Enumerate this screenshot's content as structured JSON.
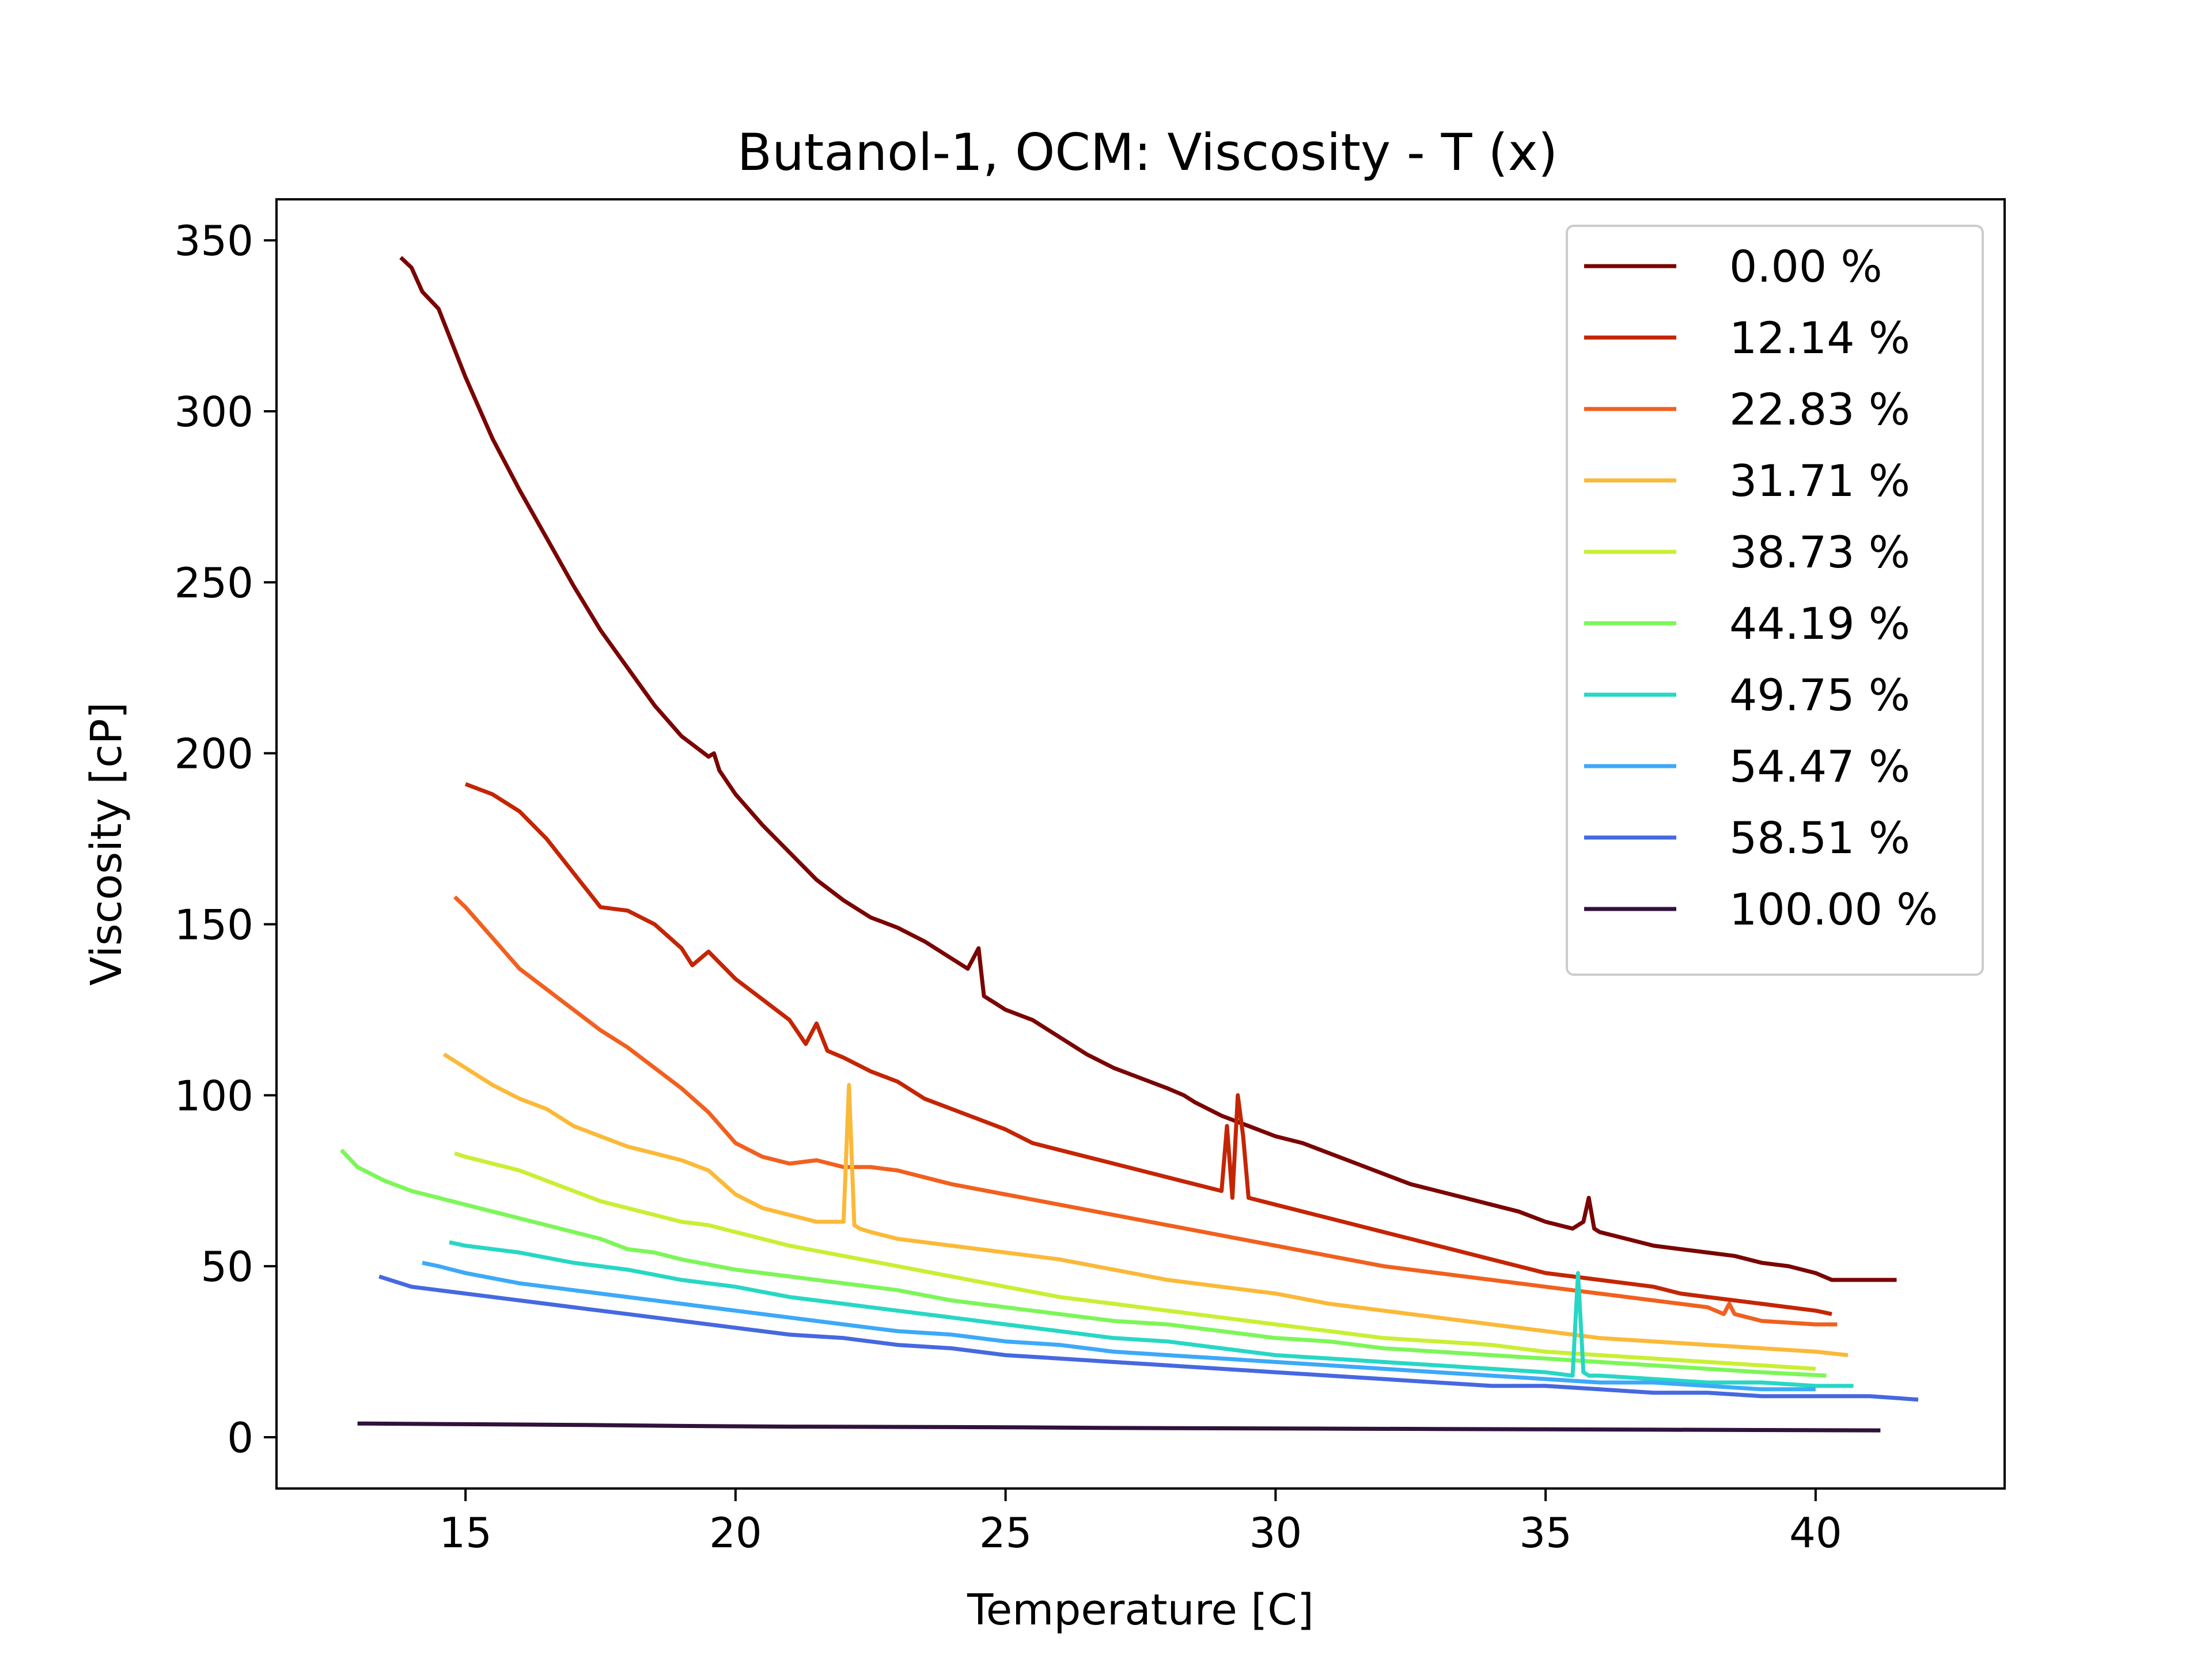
{
  "chart_data": {
    "type": "line",
    "title": "Butanol-1, OCM: Viscosity - T (x)",
    "xlabel": "Temperature [C]",
    "ylabel": "Viscosity [cP]",
    "xlim": [
      11.5,
      43.5
    ],
    "ylim": [
      -15,
      362
    ],
    "xticks": [
      15,
      20,
      25,
      30,
      35,
      40
    ],
    "yticks": [
      0,
      50,
      100,
      150,
      200,
      250,
      300,
      350
    ],
    "grid": false,
    "legend_position": "top-right",
    "series": [
      {
        "name": "0.00 %",
        "color": "#7a0403",
        "x": [
          13.8,
          14.0,
          14.2,
          14.5,
          15.0,
          15.5,
          16.0,
          16.5,
          17.0,
          17.5,
          18.0,
          18.5,
          19.0,
          19.5,
          19.6,
          19.7,
          20.0,
          20.5,
          21.0,
          21.5,
          22.0,
          22.5,
          23.0,
          23.5,
          24.0,
          24.3,
          24.5,
          24.6,
          24.8,
          25.0,
          25.5,
          26.0,
          26.5,
          27.0,
          27.5,
          28.0,
          28.3,
          28.5,
          29.0,
          29.5,
          30.0,
          30.5,
          31.0,
          31.5,
          32.0,
          32.5,
          33.0,
          33.5,
          34.0,
          34.5,
          35.0,
          35.5,
          35.7,
          35.8,
          35.9,
          36.0,
          36.5,
          37.0,
          37.5,
          38.0,
          38.5,
          39.0,
          39.5,
          40.0,
          40.3,
          40.5,
          41.0,
          41.5
        ],
        "y": [
          345,
          342,
          335,
          330,
          310,
          292,
          277,
          263,
          249,
          236,
          225,
          214,
          205,
          199,
          200,
          195,
          188,
          179,
          171,
          163,
          157,
          152,
          149,
          145,
          140,
          137,
          143,
          129,
          127,
          125,
          122,
          117,
          112,
          108,
          105,
          102,
          100,
          98,
          94,
          91,
          88,
          86,
          83,
          80,
          77,
          74,
          72,
          70,
          68,
          66,
          63,
          61,
          63,
          70,
          61,
          60,
          58,
          56,
          55,
          54,
          53,
          51,
          50,
          48,
          46,
          46,
          46,
          46
        ]
      },
      {
        "name": "12.14 %",
        "color": "#c42503",
        "x": [
          15.0,
          15.5,
          16.0,
          16.5,
          17.0,
          17.5,
          18.0,
          18.5,
          19.0,
          19.2,
          19.5,
          20.0,
          20.5,
          21.0,
          21.3,
          21.5,
          21.7,
          22.0,
          22.5,
          23.0,
          23.5,
          24.0,
          24.5,
          25.0,
          25.5,
          26.0,
          26.5,
          27.0,
          27.5,
          28.0,
          28.5,
          29.0,
          29.1,
          29.2,
          29.3,
          29.4,
          29.5,
          30.0,
          30.5,
          31.0,
          31.5,
          32.0,
          32.5,
          33.0,
          33.5,
          34.0,
          34.5,
          35.0,
          35.5,
          36.0,
          36.5,
          37.0,
          37.5,
          38.0,
          38.5,
          39.0,
          39.5,
          40.0,
          40.3
        ],
        "y": [
          191,
          188,
          183,
          175,
          165,
          155,
          154,
          150,
          143,
          138,
          142,
          134,
          128,
          122,
          115,
          121,
          113,
          111,
          107,
          104,
          99,
          96,
          93,
          90,
          86,
          84,
          82,
          80,
          78,
          76,
          74,
          72,
          91,
          70,
          100,
          88,
          70,
          68,
          66,
          64,
          62,
          60,
          58,
          56,
          54,
          52,
          50,
          48,
          47,
          46,
          45,
          44,
          42,
          41,
          40,
          39,
          38,
          37,
          36
        ]
      },
      {
        "name": "22.83 %",
        "color": "#f1601e",
        "x": [
          14.8,
          15.0,
          15.5,
          16.0,
          16.5,
          17.0,
          17.5,
          18.0,
          18.5,
          19.0,
          19.5,
          20.0,
          20.5,
          21.0,
          21.5,
          22.0,
          22.5,
          23.0,
          23.5,
          24.0,
          25.0,
          26.0,
          27.0,
          28.0,
          29.0,
          30.0,
          31.0,
          32.0,
          33.0,
          34.0,
          35.0,
          36.0,
          37.0,
          38.0,
          38.3,
          38.4,
          38.5,
          39.0,
          40.0,
          40.4
        ],
        "y": [
          158,
          155,
          146,
          137,
          131,
          125,
          119,
          114,
          108,
          102,
          95,
          86,
          82,
          80,
          81,
          79,
          79,
          78,
          76,
          74,
          71,
          68,
          65,
          62,
          59,
          56,
          53,
          50,
          48,
          46,
          44,
          42,
          40,
          38,
          36,
          39,
          36,
          34,
          33,
          33
        ]
      },
      {
        "name": "31.71 %",
        "color": "#fbb938",
        "x": [
          14.6,
          15.0,
          15.5,
          16.0,
          16.5,
          17.0,
          17.5,
          18.0,
          18.5,
          19.0,
          19.5,
          20.0,
          20.5,
          21.0,
          21.5,
          22.0,
          22.1,
          22.2,
          22.3,
          22.5,
          23.0,
          24.0,
          25.0,
          26.0,
          27.0,
          28.0,
          29.0,
          30.0,
          31.0,
          32.0,
          33.0,
          34.0,
          35.0,
          36.0,
          37.0,
          38.0,
          39.0,
          40.0,
          40.6
        ],
        "y": [
          112,
          108,
          103,
          99,
          96,
          91,
          88,
          85,
          83,
          81,
          78,
          71,
          67,
          65,
          63,
          63,
          103,
          62,
          61,
          60,
          58,
          56,
          54,
          52,
          49,
          46,
          44,
          42,
          39,
          37,
          35,
          33,
          31,
          29,
          28,
          27,
          26,
          25,
          24
        ]
      },
      {
        "name": "38.73 %",
        "color": "#c9ef34",
        "x": [
          14.8,
          15.0,
          15.5,
          16.0,
          16.5,
          17.0,
          17.5,
          18.0,
          18.5,
          19.0,
          19.5,
          20.0,
          21.0,
          22.0,
          23.0,
          24.0,
          25.0,
          26.0,
          27.0,
          28.0,
          29.0,
          30.0,
          31.0,
          32.0,
          33.0,
          34.0,
          35.0,
          36.0,
          37.0,
          38.0,
          39.0,
          40.0
        ],
        "y": [
          83,
          82,
          80,
          78,
          75,
          72,
          69,
          67,
          65,
          63,
          62,
          60,
          56,
          53,
          50,
          47,
          44,
          41,
          39,
          37,
          35,
          33,
          31,
          29,
          28,
          27,
          25,
          24,
          23,
          22,
          21,
          20
        ]
      },
      {
        "name": "44.19 %",
        "color": "#7cf658",
        "x": [
          12.7,
          13.0,
          13.5,
          14.0,
          14.5,
          15.0,
          15.5,
          16.0,
          16.5,
          17.0,
          17.5,
          18.0,
          18.5,
          19.0,
          20.0,
          21.0,
          22.0,
          23.0,
          24.0,
          25.0,
          26.0,
          27.0,
          28.0,
          29.0,
          30.0,
          31.0,
          32.0,
          33.0,
          34.0,
          35.0,
          36.0,
          37.0,
          38.0,
          39.0,
          40.2
        ],
        "y": [
          84,
          79,
          75,
          72,
          70,
          68,
          66,
          64,
          62,
          60,
          58,
          55,
          54,
          52,
          49,
          47,
          45,
          43,
          40,
          38,
          36,
          34,
          33,
          31,
          29,
          28,
          26,
          25,
          24,
          23,
          22,
          21,
          20,
          19,
          18
        ]
      },
      {
        "name": "49.75 %",
        "color": "#27d7c4",
        "x": [
          14.7,
          15.0,
          16.0,
          17.0,
          18.0,
          19.0,
          20.0,
          21.0,
          22.0,
          23.0,
          24.0,
          25.0,
          26.0,
          27.0,
          28.0,
          29.0,
          30.0,
          31.0,
          32.0,
          33.0,
          34.0,
          35.0,
          35.5,
          35.6,
          35.7,
          35.8,
          36.0,
          37.0,
          38.0,
          39.0,
          40.0,
          40.7
        ],
        "y": [
          57,
          56,
          54,
          51,
          49,
          46,
          44,
          41,
          39,
          37,
          35,
          33,
          31,
          29,
          28,
          26,
          24,
          23,
          22,
          21,
          20,
          19,
          18,
          48,
          19,
          18,
          18,
          17,
          16,
          16,
          15,
          15
        ]
      },
      {
        "name": "54.47 %",
        "color": "#3da9f8",
        "x": [
          14.2,
          14.5,
          15.0,
          16.0,
          17.0,
          18.0,
          19.0,
          20.0,
          21.0,
          22.0,
          23.0,
          24.0,
          25.0,
          26.0,
          27.0,
          28.0,
          29.0,
          30.0,
          31.0,
          32.0,
          33.0,
          34.0,
          35.0,
          36.0,
          37.0,
          38.0,
          39.0,
          40.0
        ],
        "y": [
          51,
          50,
          48,
          45,
          43,
          41,
          39,
          37,
          35,
          33,
          31,
          30,
          28,
          27,
          25,
          24,
          23,
          22,
          21,
          20,
          19,
          18,
          17,
          16,
          16,
          15,
          14,
          14
        ]
      },
      {
        "name": "58.51 %",
        "color": "#4668e0",
        "x": [
          13.4,
          14.0,
          14.5,
          15.0,
          16.0,
          17.0,
          18.0,
          19.0,
          20.0,
          21.0,
          22.0,
          23.0,
          24.0,
          25.0,
          26.0,
          27.0,
          28.0,
          29.0,
          30.0,
          31.0,
          32.0,
          33.0,
          34.0,
          35.0,
          36.0,
          37.0,
          38.0,
          39.0,
          40.0,
          41.0,
          41.9
        ],
        "y": [
          47,
          44,
          43,
          42,
          40,
          38,
          36,
          34,
          32,
          30,
          29,
          27,
          26,
          24,
          23,
          22,
          21,
          20,
          19,
          18,
          17,
          16,
          15,
          15,
          14,
          13,
          13,
          12,
          12,
          12,
          11
        ]
      },
      {
        "name": "100.00 %",
        "color": "#30123b",
        "x": [
          13.0,
          15.0,
          17.0,
          19.0,
          20.0,
          21.0,
          23.0,
          25.0,
          27.0,
          29.0,
          31.0,
          33.0,
          35.0,
          37.0,
          39.0,
          41.2
        ],
        "y": [
          4.0,
          3.8,
          3.6,
          3.3,
          3.2,
          3.1,
          3.0,
          2.9,
          2.7,
          2.6,
          2.5,
          2.4,
          2.3,
          2.2,
          2.1,
          2.0
        ]
      }
    ]
  }
}
